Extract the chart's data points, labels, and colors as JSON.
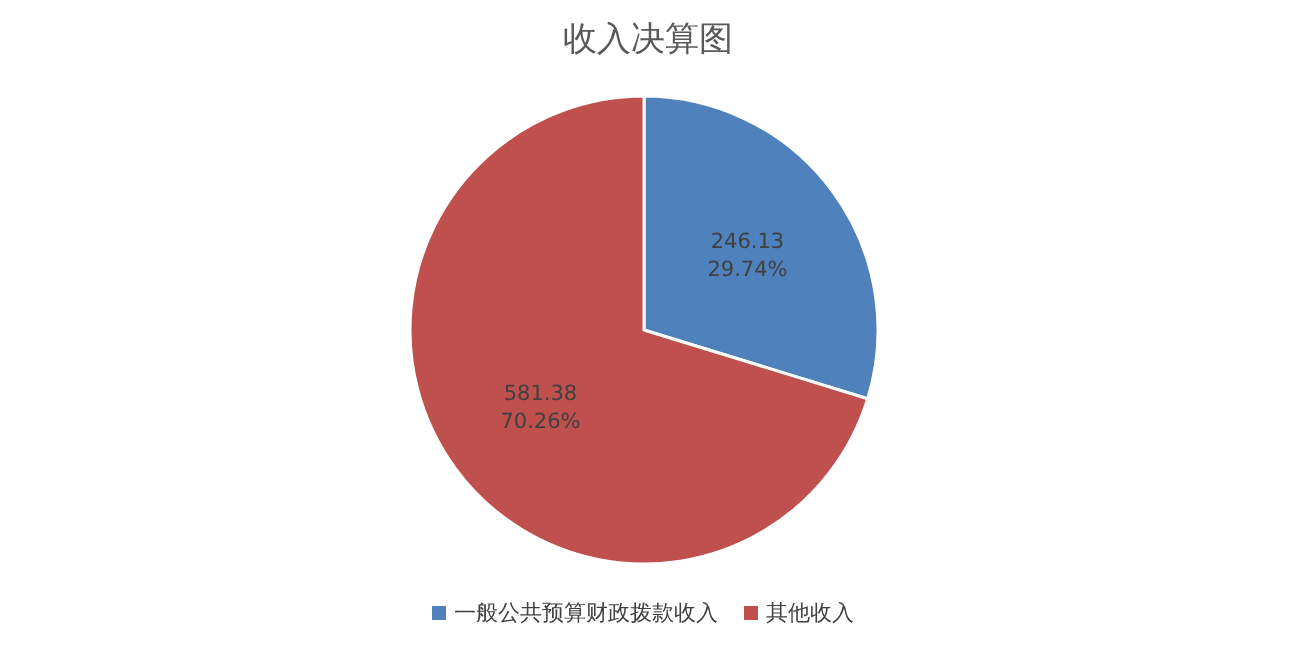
{
  "chart_data": {
    "type": "pie",
    "title": "收入决算图",
    "categories": [
      "一般公共预算财政拨款收入",
      "其他收入"
    ],
    "values": [
      246.13,
      581.38
    ],
    "colors": [
      "#4f81bd",
      "#c0504d"
    ],
    "value_labels": [
      "246.13 29.74%",
      "581.38 70.26%"
    ],
    "legend": "bottom"
  }
}
